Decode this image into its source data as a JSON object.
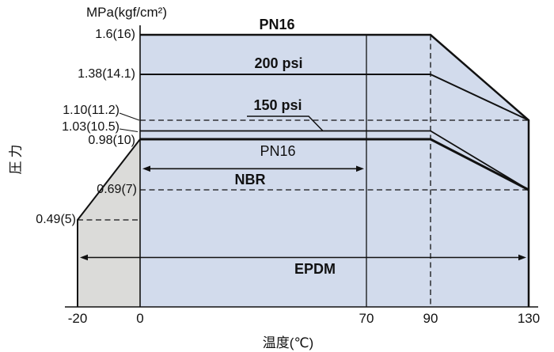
{
  "page": {
    "background": "#ffffff"
  },
  "colors": {
    "region_blue": "#d2dbec",
    "region_gray": "#dbdbd9",
    "line_black": "#111111"
  },
  "chart_data": {
    "type": "line",
    "title": "",
    "x_axis": {
      "label": "温度(℃)",
      "range": [
        -20,
        130
      ],
      "ticks": [
        {
          "label": "-20",
          "value": -20
        },
        {
          "label": "0",
          "value": 0
        },
        {
          "label": "70",
          "value": 70
        },
        {
          "label": "90",
          "value": 90
        },
        {
          "label": "130",
          "value": 130
        }
      ]
    },
    "y_axis": {
      "label": "圧力",
      "unit": "MPa(kgf/cm²)",
      "range": [
        0,
        1.75
      ],
      "ticks": [
        {
          "label": "1.6(16)",
          "value": 1.6
        },
        {
          "label": "1.38(14.1)",
          "value": 1.38
        },
        {
          "label": "1.10(11.2)",
          "value": 1.1
        },
        {
          "label": "1.03(10.5)",
          "value": 1.03
        },
        {
          "label": "0.98(10)",
          "value": 0.98
        },
        {
          "label": "0.69(7)",
          "value": 0.69
        },
        {
          "label": "0.49(5)",
          "value": 0.49
        }
      ]
    },
    "series": [
      {
        "name": "pn16-body-rating",
        "label": "PN16",
        "width": 2.5,
        "points": [
          [
            0,
            1.6
          ],
          [
            90,
            1.6
          ],
          [
            130,
            1.1
          ],
          [
            130,
            0
          ]
        ]
      },
      {
        "name": "200psi-rating",
        "label": "200 psi",
        "width": 2,
        "points": [
          [
            0,
            1.38
          ],
          [
            90,
            1.38
          ],
          [
            130,
            1.1
          ]
        ]
      },
      {
        "name": "150psi-rating",
        "label": "150 psi",
        "width": 1.8,
        "points": [
          [
            0,
            1.03
          ],
          [
            90,
            1.03
          ],
          [
            130,
            0.69
          ]
        ]
      },
      {
        "name": "pn16-seat-rating",
        "label": "PN16",
        "width": 3,
        "points": [
          [
            0,
            0.98
          ],
          [
            90,
            0.98
          ],
          [
            130,
            0.69
          ]
        ]
      },
      {
        "name": "epdm-low-temp-boundary",
        "label": "",
        "width": 2,
        "points": [
          [
            -20,
            0
          ],
          [
            -20,
            0.49
          ],
          [
            0,
            0.98
          ]
        ]
      }
    ],
    "reference_lines": [
      {
        "axis": "y",
        "value": 1.1,
        "from": 0,
        "to": 130,
        "style": "dashed"
      },
      {
        "axis": "y",
        "value": 0.69,
        "from": 0,
        "to": 130,
        "style": "dashed"
      },
      {
        "axis": "y",
        "value": 0.49,
        "from": -20,
        "to": 0,
        "style": "dashed"
      },
      {
        "axis": "x",
        "value": 70,
        "style": "solid"
      },
      {
        "axis": "x",
        "value": 90,
        "style": "dashed"
      }
    ],
    "regions": [
      {
        "name": "rated-region",
        "fill": "#d2dbec",
        "points": [
          [
            0,
            1.6
          ],
          [
            90,
            1.6
          ],
          [
            130,
            1.1
          ],
          [
            130,
            0
          ],
          [
            0,
            0
          ]
        ]
      },
      {
        "name": "epdm-low-temp-region",
        "fill": "#dbdbd9",
        "points": [
          [
            -20,
            0.49
          ],
          [
            0,
            0.98
          ],
          [
            0,
            0
          ],
          [
            -20,
            0
          ]
        ]
      }
    ],
    "range_arrows": [
      {
        "label": "NBR",
        "from": 0,
        "to": 70
      },
      {
        "label": "EPDM",
        "from": -20,
        "to": 130
      }
    ]
  }
}
